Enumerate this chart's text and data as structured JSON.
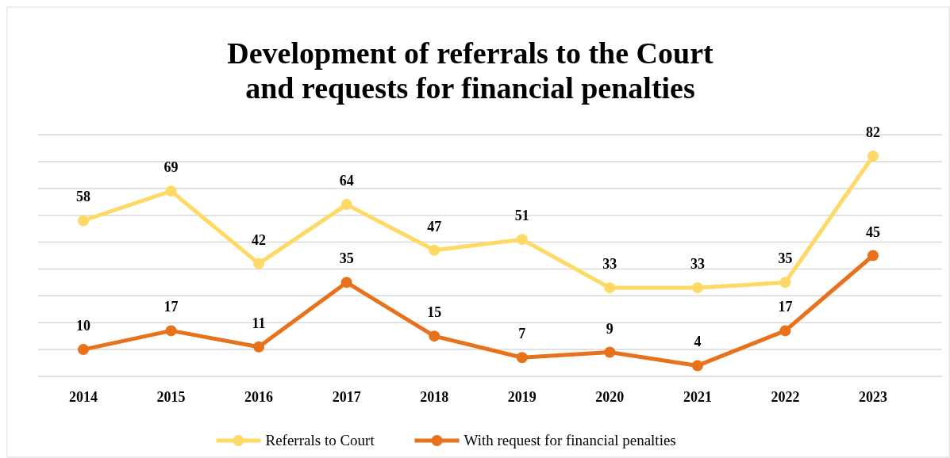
{
  "chart_data": {
    "type": "line",
    "title": "Development of referrals to the Court\nand requests for financial penalties",
    "categories": [
      "2014",
      "2015",
      "2016",
      "2017",
      "2018",
      "2019",
      "2020",
      "2021",
      "2022",
      "2023"
    ],
    "series": [
      {
        "name": "Referrals to Court",
        "color": "#ffd966",
        "values": [
          58,
          69,
          42,
          64,
          47,
          51,
          33,
          33,
          35,
          82
        ]
      },
      {
        "name": "With request for financial penalties",
        "color": "#e8711c",
        "values": [
          10,
          17,
          11,
          35,
          15,
          7,
          9,
          4,
          17,
          45
        ]
      }
    ],
    "ylim": [
      0,
      90
    ],
    "yticks": [
      {
        "value": 0,
        "label": null
      },
      {
        "value": 10,
        "label": null
      },
      {
        "value": 20,
        "label": null
      },
      {
        "value": 30,
        "label": null
      },
      {
        "value": 40,
        "label": null
      },
      {
        "value": 50,
        "label": null
      },
      {
        "value": 60,
        "label": null
      },
      {
        "value": 70,
        "label": null
      },
      {
        "value": 80,
        "label": null
      },
      {
        "value": 90,
        "label": null
      }
    ],
    "tick_labels": "x",
    "grid": "y",
    "legend": "bottom",
    "marker": "circle",
    "line_style": "solid",
    "data_labels": true
  }
}
